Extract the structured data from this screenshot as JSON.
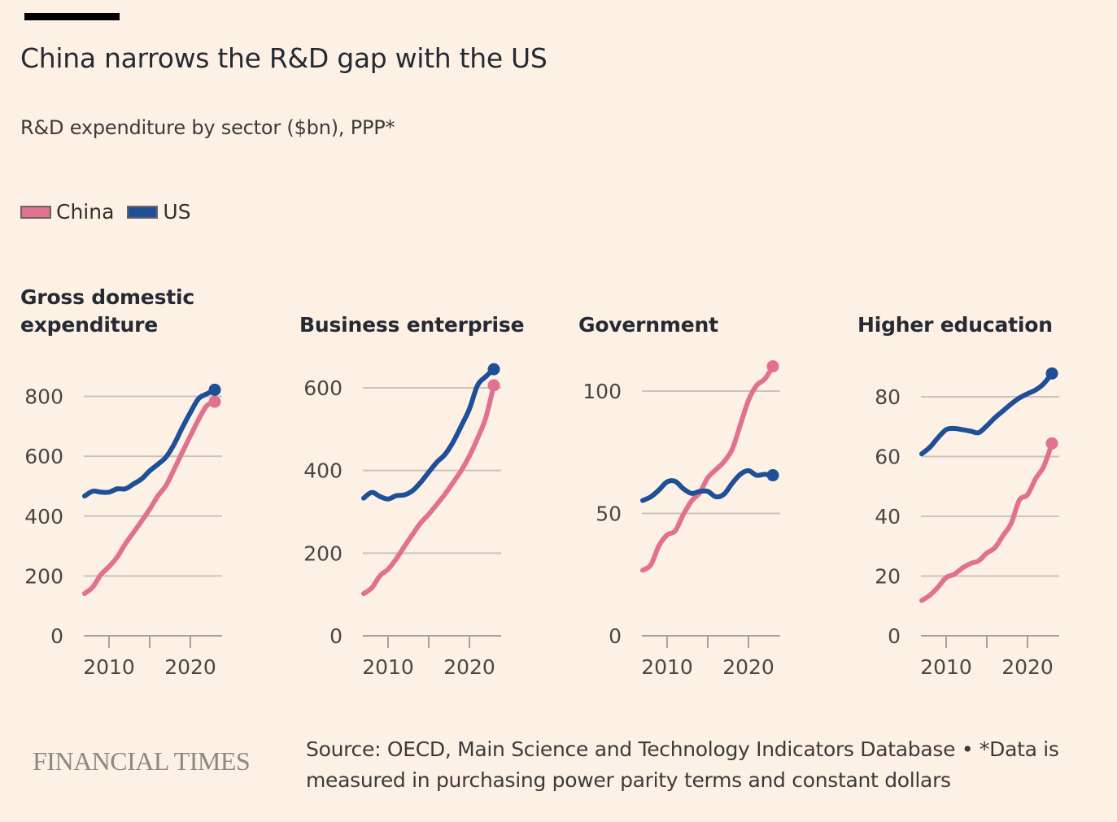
{
  "header": {
    "title": "China narrows the R&D gap with the US",
    "subtitle": "R&D expenditure by sector ($bn), PPP*"
  },
  "legend": [
    {
      "label": "China",
      "color": "#e0718f"
    },
    {
      "label": "US",
      "color": "#1f4f96"
    }
  ],
  "footer": {
    "logo": "FINANCIAL TIMES",
    "source": "Source: OECD, Main Science and Technology Indicators Database • *Data is measured in purchasing power parity terms and constant dollars"
  },
  "colors": {
    "china": "#e0718f",
    "us": "#1f4f96",
    "grid": "#cbc3ba",
    "axis": "#a9a29b",
    "background": "#fdf1e6"
  },
  "chart_data": [
    {
      "type": "line",
      "title": "Gross domestic expenditure",
      "title_lines": [
        "Gross domestic",
        "expenditure"
      ],
      "xlabel": "",
      "ylabel": "",
      "ylim": [
        0,
        800
      ],
      "yticks": [
        0,
        200,
        400,
        600,
        800
      ],
      "ytick_labels": [
        "0",
        "200",
        "400",
        "600",
        "800"
      ],
      "xlim": [
        2007,
        2023
      ],
      "xticks": [
        2010,
        2015,
        2020
      ],
      "xtick_labels": [
        "2010",
        "",
        "2020"
      ],
      "grid": true,
      "x": [
        2007,
        2008,
        2009,
        2010,
        2011,
        2012,
        2013,
        2014,
        2015,
        2016,
        2017,
        2018,
        2019,
        2020,
        2021,
        2022,
        2023
      ],
      "series": [
        {
          "name": "China",
          "values": [
            141,
            163,
            204,
            231,
            263,
            307,
            345,
            383,
            423,
            467,
            502,
            556,
            613,
            668,
            722,
            768,
            782
          ]
        },
        {
          "name": "US",
          "values": [
            467,
            483,
            480,
            480,
            491,
            491,
            507,
            524,
            551,
            573,
            597,
            640,
            695,
            746,
            792,
            808,
            822
          ]
        }
      ]
    },
    {
      "type": "line",
      "title": "Business enterprise",
      "title_lines": [
        "Business enterprise"
      ],
      "xlabel": "",
      "ylabel": "",
      "ylim": [
        0,
        600
      ],
      "yticks": [
        0,
        200,
        400,
        600
      ],
      "ytick_labels": [
        "0",
        "200",
        "400",
        "600"
      ],
      "xlim": [
        2007,
        2023
      ],
      "xticks": [
        2010,
        2015,
        2020
      ],
      "xtick_labels": [
        "2010",
        "",
        "2020"
      ],
      "grid": true,
      "x": [
        2007,
        2008,
        2009,
        2010,
        2011,
        2012,
        2013,
        2014,
        2015,
        2016,
        2017,
        2018,
        2019,
        2020,
        2021,
        2022,
        2023
      ],
      "series": [
        {
          "name": "China",
          "values": [
            102,
            116,
            145,
            161,
            186,
            216,
            245,
            273,
            294,
            318,
            343,
            371,
            400,
            435,
            478,
            527,
            606
          ]
        },
        {
          "name": "US",
          "values": [
            333,
            347,
            337,
            331,
            339,
            341,
            351,
            371,
            396,
            420,
            439,
            469,
            508,
            549,
            606,
            627,
            645
          ]
        }
      ]
    },
    {
      "type": "line",
      "title": "Government",
      "title_lines": [
        "Government"
      ],
      "xlabel": "",
      "ylabel": "",
      "ylim": [
        0,
        100
      ],
      "yticks": [
        0,
        50,
        100
      ],
      "ytick_labels": [
        "0",
        "50",
        "100"
      ],
      "xlim": [
        2007,
        2023
      ],
      "xticks": [
        2010,
        2015,
        2020
      ],
      "xtick_labels": [
        "2010",
        "",
        "2020"
      ],
      "grid": true,
      "x": [
        2007,
        2008,
        2009,
        2010,
        2011,
        2012,
        2013,
        2014,
        2015,
        2016,
        2017,
        2018,
        2019,
        2020,
        2021,
        2022,
        2023
      ],
      "series": [
        {
          "name": "China",
          "values": [
            26.8,
            29.0,
            36.8,
            41.2,
            42.9,
            49.6,
            55.1,
            58.4,
            64.6,
            67.9,
            71.2,
            76.2,
            86.2,
            96.2,
            102.3,
            104.9,
            110.1
          ]
        },
        {
          "name": "US",
          "values": [
            55.3,
            56.8,
            59.6,
            62.9,
            63.1,
            60.1,
            58.2,
            59.0,
            59.0,
            56.8,
            57.9,
            62.3,
            66.0,
            67.5,
            65.6,
            66.0,
            65.6
          ]
        }
      ]
    },
    {
      "type": "line",
      "title": "Higher education",
      "title_lines": [
        "Higher education"
      ],
      "xlabel": "",
      "ylabel": "",
      "ylim": [
        0,
        80
      ],
      "yticks": [
        0,
        20,
        40,
        60,
        80
      ],
      "ytick_labels": [
        "0",
        "20",
        "40",
        "60",
        "80"
      ],
      "xlim": [
        2007,
        2023
      ],
      "xticks": [
        2010,
        2015,
        2020
      ],
      "xtick_labels": [
        "2010",
        "",
        "2020"
      ],
      "grid": true,
      "x": [
        2007,
        2008,
        2009,
        2010,
        2011,
        2012,
        2013,
        2014,
        2015,
        2016,
        2017,
        2018,
        2019,
        2020,
        2021,
        2022,
        2023
      ],
      "series": [
        {
          "name": "China",
          "values": [
            11.8,
            13.6,
            16.3,
            19.5,
            20.6,
            22.7,
            24.2,
            25.1,
            27.7,
            29.5,
            33.6,
            37.7,
            45.4,
            47.2,
            52.6,
            56.7,
            64.4
          ]
        },
        {
          "name": "US",
          "values": [
            60.9,
            63.1,
            66.3,
            69.0,
            69.4,
            69.0,
            68.5,
            68.0,
            70.3,
            73.0,
            75.3,
            77.6,
            79.6,
            81.0,
            82.3,
            84.4,
            87.8
          ]
        }
      ]
    }
  ]
}
